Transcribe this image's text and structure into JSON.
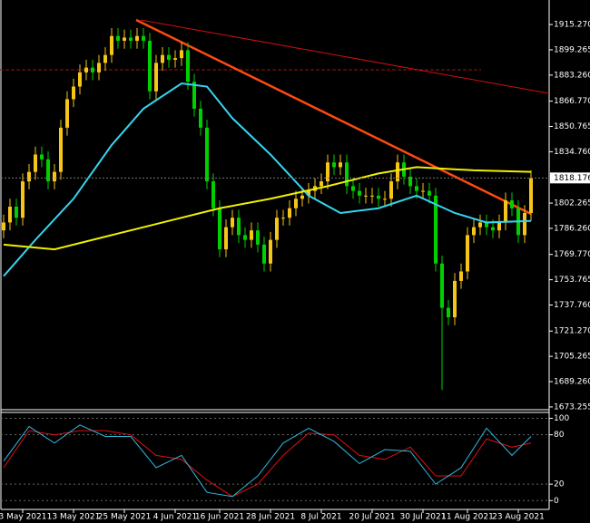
{
  "chart_data": [
    {
      "type": "candlestick",
      "categories": [
        null,
        null,
        null,
        "3 May 2021",
        null,
        null,
        null,
        null,
        null,
        null,
        null,
        "13 May 2021",
        null,
        null,
        null,
        null,
        null,
        null,
        null,
        "25 May 2021",
        null,
        null,
        null,
        null,
        null,
        null,
        null,
        "4 Jun 2021",
        null,
        null,
        null,
        null,
        null,
        null,
        "16 Jun 2021",
        null,
        null,
        null,
        null,
        null,
        null,
        null,
        "28 Jun 2021",
        null,
        null,
        null,
        null,
        null,
        null,
        null,
        "8 Jul 2021",
        null,
        null,
        null,
        null,
        null,
        null,
        null,
        "20 Jul 2021",
        null,
        null,
        null,
        null,
        null,
        null,
        null,
        "30 Jul 2021",
        null,
        null,
        null,
        null,
        null,
        null,
        "11 Aug 2021",
        null,
        null,
        null,
        null,
        null,
        null,
        null,
        "23 Aug 2021",
        null,
        null
      ],
      "open": [
        1785,
        1790,
        1800,
        1793,
        1816,
        1822,
        1833,
        1830,
        1816,
        1822,
        1850,
        1868,
        1876,
        1885,
        1888,
        1885,
        1891,
        1896,
        1908,
        1905,
        1907,
        1905,
        1908,
        1905,
        1873,
        1891,
        1896,
        1893,
        1894,
        1899,
        1879,
        1862,
        1850,
        1816,
        1799,
        1773,
        1787,
        1793,
        1782,
        1779,
        1785,
        1776,
        1764,
        1779,
        1793,
        1793,
        1799,
        1805,
        1807,
        1810,
        1813,
        1816,
        1828,
        1825,
        1828,
        1813,
        1810,
        1807,
        1807,
        1807,
        1805,
        1805,
        1816,
        1828,
        1819,
        1813,
        1810,
        1810,
        1807,
        1764,
        1736,
        1730,
        1753,
        1759,
        1782,
        1787,
        1790,
        1787,
        1785,
        1790,
        1804,
        1799,
        1782,
        1796
      ],
      "high": [
        1795,
        1805,
        1805,
        1821,
        1827,
        1838,
        1838,
        1835,
        1827,
        1855,
        1873,
        1881,
        1890,
        1893,
        1893,
        1896,
        1901,
        1913,
        1913,
        1912,
        1912,
        1913,
        1913,
        1910,
        1896,
        1901,
        1901,
        1899,
        1904,
        1904,
        1884,
        1867,
        1855,
        1821,
        1804,
        1792,
        1798,
        1798,
        1787,
        1790,
        1790,
        1781,
        1784,
        1798,
        1798,
        1804,
        1810,
        1812,
        1815,
        1818,
        1821,
        1833,
        1833,
        1833,
        1833,
        1818,
        1815,
        1812,
        1812,
        1812,
        1810,
        1821,
        1833,
        1833,
        1824,
        1818,
        1815,
        1815,
        1812,
        1769,
        1741,
        1758,
        1764,
        1787,
        1792,
        1795,
        1795,
        1792,
        1795,
        1809,
        1809,
        1804,
        1801,
        1823
      ],
      "low": [
        1780,
        1785,
        1788,
        1788,
        1811,
        1817,
        1825,
        1811,
        1811,
        1817,
        1845,
        1863,
        1871,
        1880,
        1880,
        1880,
        1886,
        1891,
        1900,
        1900,
        1900,
        1900,
        1900,
        1868,
        1868,
        1886,
        1888,
        1888,
        1889,
        1874,
        1857,
        1845,
        1811,
        1794,
        1768,
        1768,
        1782,
        1777,
        1774,
        1774,
        1771,
        1759,
        1759,
        1774,
        1788,
        1788,
        1794,
        1800,
        1802,
        1805,
        1808,
        1811,
        1820,
        1820,
        1808,
        1805,
        1802,
        1802,
        1802,
        1800,
        1800,
        1800,
        1811,
        1814,
        1808,
        1805,
        1805,
        1802,
        1759,
        1684,
        1725,
        1725,
        1748,
        1754,
        1777,
        1782,
        1782,
        1780,
        1780,
        1785,
        1794,
        1777,
        1777,
        1791
      ],
      "close": [
        1790,
        1800,
        1793,
        1816,
        1822,
        1833,
        1830,
        1816,
        1822,
        1850,
        1868,
        1876,
        1885,
        1888,
        1885,
        1891,
        1896,
        1908,
        1905,
        1907,
        1905,
        1908,
        1905,
        1873,
        1891,
        1896,
        1893,
        1894,
        1899,
        1879,
        1862,
        1850,
        1816,
        1799,
        1773,
        1787,
        1793,
        1782,
        1779,
        1785,
        1776,
        1764,
        1779,
        1793,
        1793,
        1799,
        1805,
        1807,
        1810,
        1813,
        1816,
        1828,
        1825,
        1828,
        1813,
        1810,
        1807,
        1807,
        1807,
        1805,
        1805,
        1816,
        1828,
        1819,
        1813,
        1810,
        1810,
        1807,
        1764,
        1736,
        1730,
        1753,
        1759,
        1782,
        1787,
        1790,
        1787,
        1785,
        1790,
        1804,
        1799,
        1782,
        1796,
        1818
      ],
      "up_color": "#f5c518",
      "down_color": "#00d000",
      "series": [
        {
          "color": "#33d6f0",
          "x": [
            0,
            5,
            11,
            17,
            22,
            28,
            32,
            36,
            42,
            48,
            53,
            59,
            65,
            71,
            76,
            83
          ],
          "values": [
            1756,
            1779,
            1805,
            1839,
            1862,
            1878,
            1876,
            1856,
            1833,
            1807,
            1796,
            1799,
            1807,
            1796,
            1790,
            1791
          ]
        },
        {
          "color": "#f0f000",
          "x": [
            0,
            8,
            17,
            25,
            34,
            42,
            51,
            59,
            65,
            74,
            83
          ],
          "values": [
            1776,
            1773,
            1782,
            1790,
            1799,
            1805,
            1813,
            1821,
            1825,
            1823,
            1822
          ]
        }
      ],
      "last_price": 1818.176,
      "ylim": [
        1671.5,
        1930.8
      ],
      "yticks": [
        {
          "value": 1915.27,
          "label": "1915.270"
        },
        {
          "value": 1899.265,
          "label": "1899.265"
        },
        {
          "value": 1883.26,
          "label": "1883.260"
        },
        {
          "value": 1866.77,
          "label": "1866.770"
        },
        {
          "value": 1850.765,
          "label": "1850.765"
        },
        {
          "value": 1834.76,
          "label": "1834.760"
        },
        {
          "value": 1802.265,
          "label": "1802.265"
        },
        {
          "value": 1786.26,
          "label": "1786.260"
        },
        {
          "value": 1769.77,
          "label": "1769.770"
        },
        {
          "value": 1753.765,
          "label": "1753.765"
        },
        {
          "value": 1737.76,
          "label": "1737.760"
        },
        {
          "value": 1721.27,
          "label": "1721.270"
        },
        {
          "value": 1705.265,
          "label": "1705.265"
        },
        {
          "value": 1689.26,
          "label": "1689.260"
        },
        {
          "value": 1673.255,
          "label": "1673.255"
        }
      ]
    },
    {
      "type": "line",
      "x": [
        0,
        4,
        8,
        12,
        16,
        20,
        24,
        28,
        32,
        36,
        40,
        44,
        48,
        52,
        56,
        60,
        64,
        68,
        72,
        76,
        80,
        83
      ],
      "series": [
        {
          "color": "#e01010",
          "values": [
            40,
            85,
            80,
            85,
            85,
            80,
            55,
            50,
            25,
            5,
            20,
            55,
            82,
            80,
            55,
            50,
            65,
            30,
            30,
            75,
            65,
            70
          ]
        },
        {
          "color": "#30b8e0",
          "values": [
            48,
            90,
            70,
            92,
            78,
            78,
            40,
            55,
            10,
            5,
            30,
            70,
            88,
            72,
            45,
            62,
            60,
            20,
            40,
            88,
            55,
            78
          ]
        }
      ],
      "ylim": [
        -3,
        105
      ],
      "yticks": [
        100,
        80,
        20,
        0
      ]
    }
  ]
}
